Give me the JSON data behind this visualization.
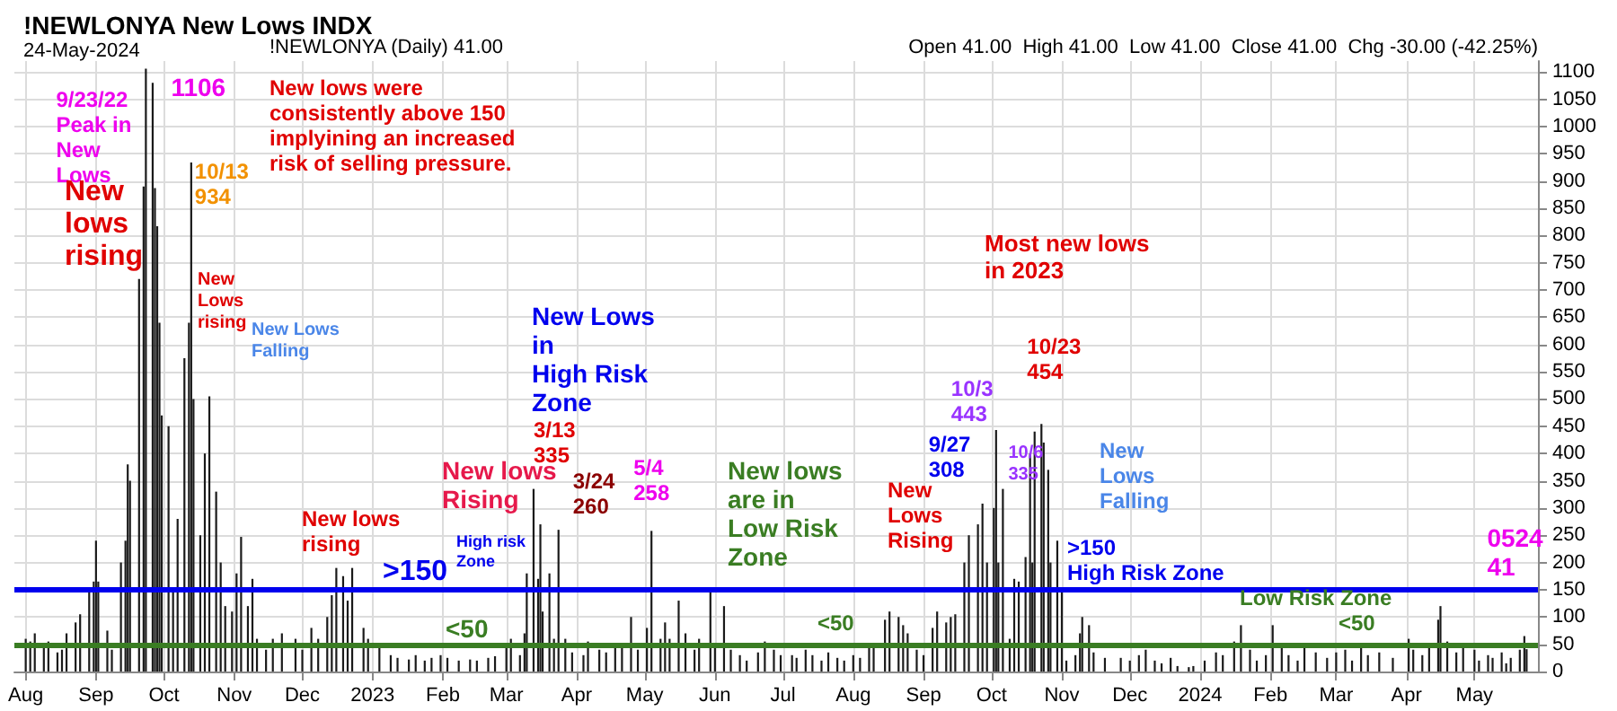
{
  "chart_data": {
    "type": "bar",
    "title": "!NEWLONYA New Lows INDX",
    "subtitle": "24-May-2024",
    "annotations": [
      "Open 41.00  High 41.00  Low 41.00  Close 41.00  Chg -30.00 (-42.25%)",
      "!NEWLONYA (Daily) 41.00",
      {
        "text": "9/23/22\nPeak in\nNew\nLows",
        "x": "2022-09-23",
        "y": 1106
      },
      {
        "text": "1106",
        "x": "2022-09-23",
        "y": 1106
      },
      "New lows were\nconsistently above 150\nimplyining an increased\nrisk of selling pressure.",
      "New\nlows\nrising",
      {
        "text": "10/13\n934",
        "x": "2022-10-13",
        "y": 934
      },
      "New\nLows\nrising",
      "New Lows\nFalling",
      "New lows\nrising",
      "High risk\nZone",
      "New Lows\nin\nHigh Risk\nZone",
      {
        "text": "3/13\n335",
        "x": "2023-03-13",
        "y": 335
      },
      "New lows\nRising",
      {
        "text": "3/24\n260",
        "x": "2023-03-24",
        "y": 260
      },
      {
        "text": "5/4\n258",
        "x": "2023-05-04",
        "y": 258
      },
      "New lows\nare in\nLow Risk\nZone",
      "<50",
      {
        "text": "9/27\n308",
        "x": "2023-09-27",
        "y": 308
      },
      "New\nLows\nRising",
      {
        "text": "10/3\n443",
        "x": "2023-10-03",
        "y": 443
      },
      "Most new lows\nin 2023",
      {
        "text": "10/23\n454",
        "x": "2023-10-23",
        "y": 454
      },
      {
        "text": "10/6\n335",
        "x": "2023-10-06",
        "y": 335
      },
      "New\nLows\nFalling",
      ">150\nHigh Risk Zone",
      "Low Risk Zone",
      "<50",
      {
        "text": "0524\n41",
        "x": "2024-05-24",
        "y": 41
      }
    ],
    "x": [
      "2022-08-01",
      "2022-08-03",
      "2022-08-05",
      "2022-08-09",
      "2022-08-11",
      "2022-08-15",
      "2022-08-17",
      "2022-08-19",
      "2022-08-23",
      "2022-08-25",
      "2022-08-29",
      "2022-08-31",
      "2022-09-01",
      "2022-09-02",
      "2022-09-06",
      "2022-09-08",
      "2022-09-12",
      "2022-09-14",
      "2022-09-15",
      "2022-09-16",
      "2022-09-20",
      "2022-09-22",
      "2022-09-23",
      "2022-09-26",
      "2022-09-27",
      "2022-09-28",
      "2022-09-29",
      "2022-09-30",
      "2022-10-03",
      "2022-10-05",
      "2022-10-07",
      "2022-10-10",
      "2022-10-12",
      "2022-10-13",
      "2022-10-14",
      "2022-10-17",
      "2022-10-19",
      "2022-10-21",
      "2022-10-24",
      "2022-10-26",
      "2022-10-28",
      "2022-10-31",
      "2022-11-02",
      "2022-11-04",
      "2022-11-07",
      "2022-11-09",
      "2022-11-11",
      "2022-11-15",
      "2022-11-18",
      "2022-11-22",
      "2022-11-28",
      "2022-12-01",
      "2022-12-05",
      "2022-12-08",
      "2022-12-12",
      "2022-12-14",
      "2022-12-16",
      "2022-12-19",
      "2022-12-21",
      "2022-12-23",
      "2022-12-28",
      "2022-12-30",
      "2023-01-04",
      "2023-01-09",
      "2023-01-12",
      "2023-01-17",
      "2023-01-20",
      "2023-01-24",
      "2023-01-27",
      "2023-01-31",
      "2023-02-03",
      "2023-02-08",
      "2023-02-13",
      "2023-02-16",
      "2023-02-21",
      "2023-02-24",
      "2023-03-01",
      "2023-03-03",
      "2023-03-07",
      "2023-03-09",
      "2023-03-10",
      "2023-03-13",
      "2023-03-15",
      "2023-03-16",
      "2023-03-17",
      "2023-03-20",
      "2023-03-22",
      "2023-03-24",
      "2023-03-27",
      "2023-03-30",
      "2023-04-04",
      "2023-04-06",
      "2023-04-11",
      "2023-04-14",
      "2023-04-18",
      "2023-04-21",
      "2023-04-25",
      "2023-04-28",
      "2023-05-02",
      "2023-05-04",
      "2023-05-08",
      "2023-05-10",
      "2023-05-12",
      "2023-05-16",
      "2023-05-19",
      "2023-05-23",
      "2023-05-25",
      "2023-05-30",
      "2023-06-01",
      "2023-06-05",
      "2023-06-08",
      "2023-06-12",
      "2023-06-15",
      "2023-06-20",
      "2023-06-23",
      "2023-06-27",
      "2023-06-30",
      "2023-07-05",
      "2023-07-07",
      "2023-07-11",
      "2023-07-14",
      "2023-07-18",
      "2023-07-21",
      "2023-07-25",
      "2023-07-28",
      "2023-08-01",
      "2023-08-04",
      "2023-08-08",
      "2023-08-10",
      "2023-08-15",
      "2023-08-17",
      "2023-08-21",
      "2023-08-23",
      "2023-08-25",
      "2023-08-29",
      "2023-09-01",
      "2023-09-05",
      "2023-09-07",
      "2023-09-11",
      "2023-09-13",
      "2023-09-15",
      "2023-09-19",
      "2023-09-21",
      "2023-09-25",
      "2023-09-27",
      "2023-09-29",
      "2023-10-02",
      "2023-10-03",
      "2023-10-04",
      "2023-10-06",
      "2023-10-09",
      "2023-10-11",
      "2023-10-13",
      "2023-10-16",
      "2023-10-18",
      "2023-10-19",
      "2023-10-20",
      "2023-10-23",
      "2023-10-24",
      "2023-10-26",
      "2023-10-27",
      "2023-10-30",
      "2023-11-01",
      "2023-11-03",
      "2023-11-07",
      "2023-11-09",
      "2023-11-10",
      "2023-11-13",
      "2023-11-15",
      "2023-11-20",
      "2023-11-27",
      "2023-12-01",
      "2023-12-05",
      "2023-12-08",
      "2023-12-12",
      "2023-12-15",
      "2023-12-19",
      "2023-12-22",
      "2023-12-27",
      "2023-12-29",
      "2024-01-03",
      "2024-01-08",
      "2024-01-11",
      "2024-01-16",
      "2024-01-19",
      "2024-01-23",
      "2024-01-26",
      "2024-01-30",
      "2024-02-02",
      "2024-02-06",
      "2024-02-09",
      "2024-02-13",
      "2024-02-16",
      "2024-02-21",
      "2024-02-26",
      "2024-03-01",
      "2024-03-05",
      "2024-03-08",
      "2024-03-12",
      "2024-03-15",
      "2024-03-20",
      "2024-03-26",
      "2024-04-02",
      "2024-04-04",
      "2024-04-08",
      "2024-04-11",
      "2024-04-15",
      "2024-04-16",
      "2024-04-19",
      "2024-04-23",
      "2024-04-26",
      "2024-05-01",
      "2024-05-03",
      "2024-05-07",
      "2024-05-09",
      "2024-05-13",
      "2024-05-15",
      "2024-05-17",
      "2024-05-21",
      "2024-05-23",
      "2024-05-24"
    ],
    "values": [
      60,
      55,
      70,
      45,
      55,
      35,
      40,
      70,
      90,
      105,
      150,
      165,
      240,
      165,
      75,
      40,
      200,
      240,
      380,
      350,
      720,
      890,
      1106,
      1080,
      887,
      817,
      640,
      470,
      450,
      150,
      280,
      575,
      640,
      934,
      500,
      250,
      400,
      505,
      330,
      200,
      120,
      110,
      180,
      247,
      120,
      170,
      60,
      40,
      60,
      70,
      60,
      40,
      80,
      60,
      100,
      140,
      190,
      175,
      130,
      190,
      80,
      60,
      45,
      30,
      25,
      22,
      30,
      20,
      25,
      30,
      25,
      20,
      22,
      20,
      25,
      28,
      50,
      60,
      30,
      70,
      180,
      335,
      170,
      270,
      110,
      180,
      60,
      260,
      60,
      35,
      30,
      55,
      40,
      35,
      50,
      45,
      100,
      40,
      80,
      258,
      60,
      90,
      60,
      130,
      70,
      40,
      60,
      150,
      50,
      120,
      40,
      30,
      20,
      35,
      55,
      40,
      30,
      30,
      25,
      40,
      30,
      20,
      35,
      25,
      20,
      30,
      25,
      45,
      50,
      95,
      110,
      100,
      85,
      70,
      40,
      30,
      80,
      110,
      90,
      100,
      105,
      200,
      250,
      270,
      308,
      200,
      300,
      443,
      200,
      335,
      60,
      170,
      165,
      210,
      400,
      200,
      440,
      454,
      420,
      370,
      200,
      240,
      150,
      20,
      30,
      70,
      100,
      85,
      35,
      25,
      25,
      20,
      30,
      40,
      20,
      15,
      25,
      10,
      8,
      10,
      20,
      35,
      30,
      55,
      85,
      40,
      20,
      30,
      85,
      50,
      30,
      20,
      45,
      35,
      25,
      35,
      40,
      20,
      45,
      30,
      35,
      25,
      60,
      40,
      30,
      45,
      95,
      120,
      55,
      35,
      45,
      40,
      20,
      30,
      25,
      35,
      15,
      25,
      40,
      65,
      41
    ],
    "color": "#1a1a1a",
    "xlim": [
      "2022-07-27",
      "2024-05-29"
    ],
    "xticks": [
      {
        "value": "2022-08-01",
        "label": "Aug"
      },
      {
        "value": "2022-09-01",
        "label": "Sep"
      },
      {
        "value": "2022-10-01",
        "label": "Oct"
      },
      {
        "value": "2022-11-01",
        "label": "Nov"
      },
      {
        "value": "2022-12-01",
        "label": "Dec"
      },
      {
        "value": "2023-01-01",
        "label": "2023"
      },
      {
        "value": "2023-02-01",
        "label": "Feb"
      },
      {
        "value": "2023-03-01",
        "label": "Mar"
      },
      {
        "value": "2023-04-01",
        "label": "Apr"
      },
      {
        "value": "2023-05-01",
        "label": "May"
      },
      {
        "value": "2023-06-01",
        "label": "Jun"
      },
      {
        "value": "2023-07-01",
        "label": "Jul"
      },
      {
        "value": "2023-08-01",
        "label": "Aug"
      },
      {
        "value": "2023-09-01",
        "label": "Sep"
      },
      {
        "value": "2023-10-01",
        "label": "Oct"
      },
      {
        "value": "2023-11-01",
        "label": "Nov"
      },
      {
        "value": "2023-12-01",
        "label": "Dec"
      },
      {
        "value": "2024-01-01",
        "label": "2024"
      },
      {
        "value": "2024-02-01",
        "label": "Feb"
      },
      {
        "value": "2024-03-01",
        "label": "Mar"
      },
      {
        "value": "2024-04-01",
        "label": "Apr"
      },
      {
        "value": "2024-05-01",
        "label": "May"
      }
    ],
    "ylim": [
      0,
      1120
    ],
    "yticks": [
      0,
      50,
      100,
      150,
      200,
      250,
      300,
      350,
      400,
      450,
      500,
      550,
      600,
      650,
      700,
      750,
      800,
      850,
      900,
      950,
      1000,
      1050,
      1100
    ],
    "ref_lines": [
      {
        "axis": "y",
        "value": 150,
        "label": ">150",
        "color": "#0000ee"
      },
      {
        "axis": "y",
        "value": 50,
        "label": "<50",
        "color": "#3a7d23"
      }
    ],
    "grid": true
  }
}
